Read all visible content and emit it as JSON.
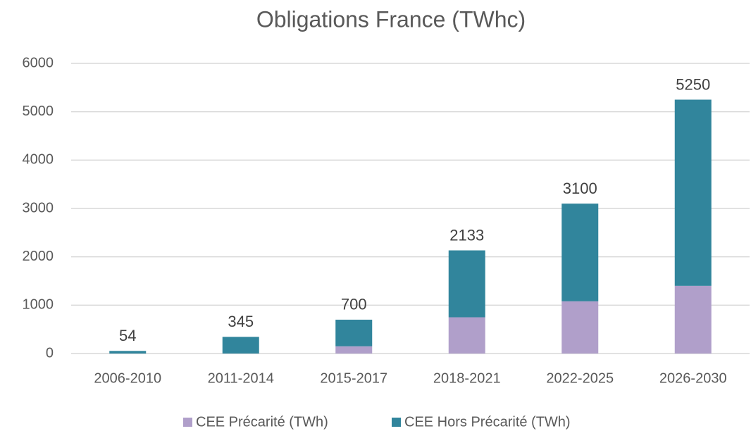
{
  "chart_data": {
    "type": "stacked_bar",
    "title": "Obligations France (TWhc)",
    "categories": [
      "2006-2010",
      "2011-2014",
      "2015-2017",
      "2018-2021",
      "2022-2025",
      "2026-2030"
    ],
    "series": [
      {
        "name": "CEE Précarité (TWh)",
        "color": "#b09fca",
        "values": [
          0,
          0,
          150,
          750,
          1080,
          1400
        ]
      },
      {
        "name": "CEE Hors Précarité (TWh)",
        "color": "#31859c",
        "values": [
          54,
          345,
          550,
          1383,
          2020,
          3850
        ]
      }
    ],
    "totals": [
      54,
      345,
      700,
      2133,
      3100,
      5250
    ],
    "ylim": [
      0,
      6000
    ],
    "yticks": [
      0,
      1000,
      2000,
      3000,
      4000,
      5000,
      6000
    ],
    "grid": true,
    "legend": "bottom"
  }
}
